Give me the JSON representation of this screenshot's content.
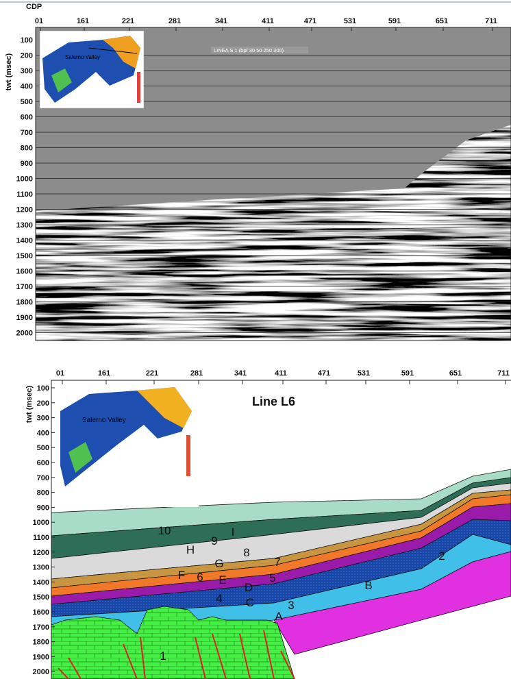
{
  "top_panel": {
    "x_axis_label": "CDP",
    "y_axis_label": "twt (msec)",
    "x_ticks": [
      "01",
      "161",
      "221",
      "281",
      "341",
      "411",
      "471",
      "531",
      "591",
      "651",
      "711"
    ],
    "y_ticks": [
      "100",
      "200",
      "300",
      "400",
      "500",
      "600",
      "700",
      "800",
      "900",
      "1000",
      "1100",
      "1200",
      "1300",
      "1400",
      "1500",
      "1600",
      "1700",
      "1800",
      "1900",
      "2000"
    ],
    "caption": "LINEA S 1 (bpf 30 50 250 300)",
    "inset_label": "Salerno Valley"
  },
  "bottom_panel": {
    "y_axis_label": "twt (msec)",
    "title": "Line L6",
    "x_ticks": [
      "01",
      "161",
      "221",
      "281",
      "341",
      "411",
      "471",
      "531",
      "591",
      "651",
      "711"
    ],
    "y_ticks": [
      "100",
      "200",
      "300",
      "400",
      "500",
      "600",
      "700",
      "800",
      "900",
      "1000",
      "1100",
      "1200",
      "1300",
      "1400",
      "1500",
      "1600",
      "1700",
      "1800",
      "1900",
      "2000"
    ],
    "inset_label": "Salerno Valley",
    "layer_labels": [
      "10",
      "I",
      "9",
      "H",
      "8",
      "G",
      "7",
      "F",
      "6",
      "E",
      "5",
      "D",
      "4",
      "C",
      "3",
      "A",
      "B",
      "2",
      "1"
    ]
  }
}
